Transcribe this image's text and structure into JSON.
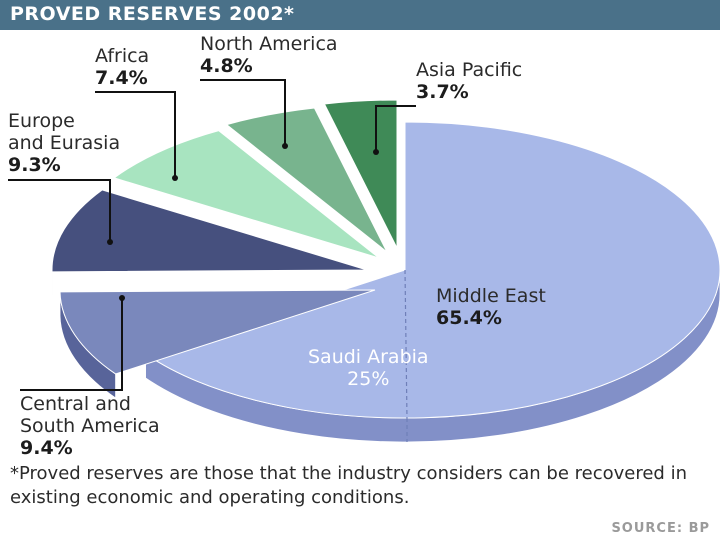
{
  "chart_data": {
    "type": "pie",
    "title": "PROVED RESERVES 2002*",
    "slices": [
      {
        "label": "Middle East",
        "value": 65.4,
        "value_label": "65.4%",
        "color": "#a8b8e8",
        "side_color": "#8290c8"
      },
      {
        "label": "Central and South America",
        "value": 9.4,
        "value_label": "9.4%",
        "color": "#7a88bc",
        "side_color": "#58649a"
      },
      {
        "label": "Europe and Eurasia",
        "value": 9.3,
        "value_label": "9.3%",
        "color": "#46507e",
        "side_color": "#2c3360"
      },
      {
        "label": "Africa",
        "value": 7.4,
        "value_label": "7.4%",
        "color": "#a8e4c0",
        "side_color": "#80c49c"
      },
      {
        "label": "North America",
        "value": 4.8,
        "value_label": "4.8%",
        "color": "#78b48e",
        "side_color": "#5a9470"
      },
      {
        "label": "Asia Pacific",
        "value": 3.7,
        "value_label": "3.7%",
        "color": "#3f8a57",
        "side_color": "#2e6a42"
      }
    ],
    "sub_slice": {
      "label": "Saudi Arabia",
      "value": 25,
      "value_label": "25%",
      "of": "Middle East"
    }
  },
  "labels": {
    "middle_east": {
      "name": "Middle East",
      "pct": "65.4%"
    },
    "saudi": {
      "name": "Saudi Arabia",
      "pct": "25%"
    },
    "csa": {
      "line1": "Central and",
      "line2": "South America",
      "pct": "9.4%"
    },
    "europe": {
      "line1": "Europe",
      "line2": "and Eurasia",
      "pct": "9.3%"
    },
    "africa": {
      "name": "Africa",
      "pct": "7.4%"
    },
    "north_america": {
      "name": "North America",
      "pct": "4.8%"
    },
    "asia_pacific": {
      "name": "Asia Pacific",
      "pct": "3.7%"
    }
  },
  "footnote": "*Proved reserves are those that the industry considers can be recovered in existing economic and operating conditions.",
  "source": "SOURCE: BP"
}
